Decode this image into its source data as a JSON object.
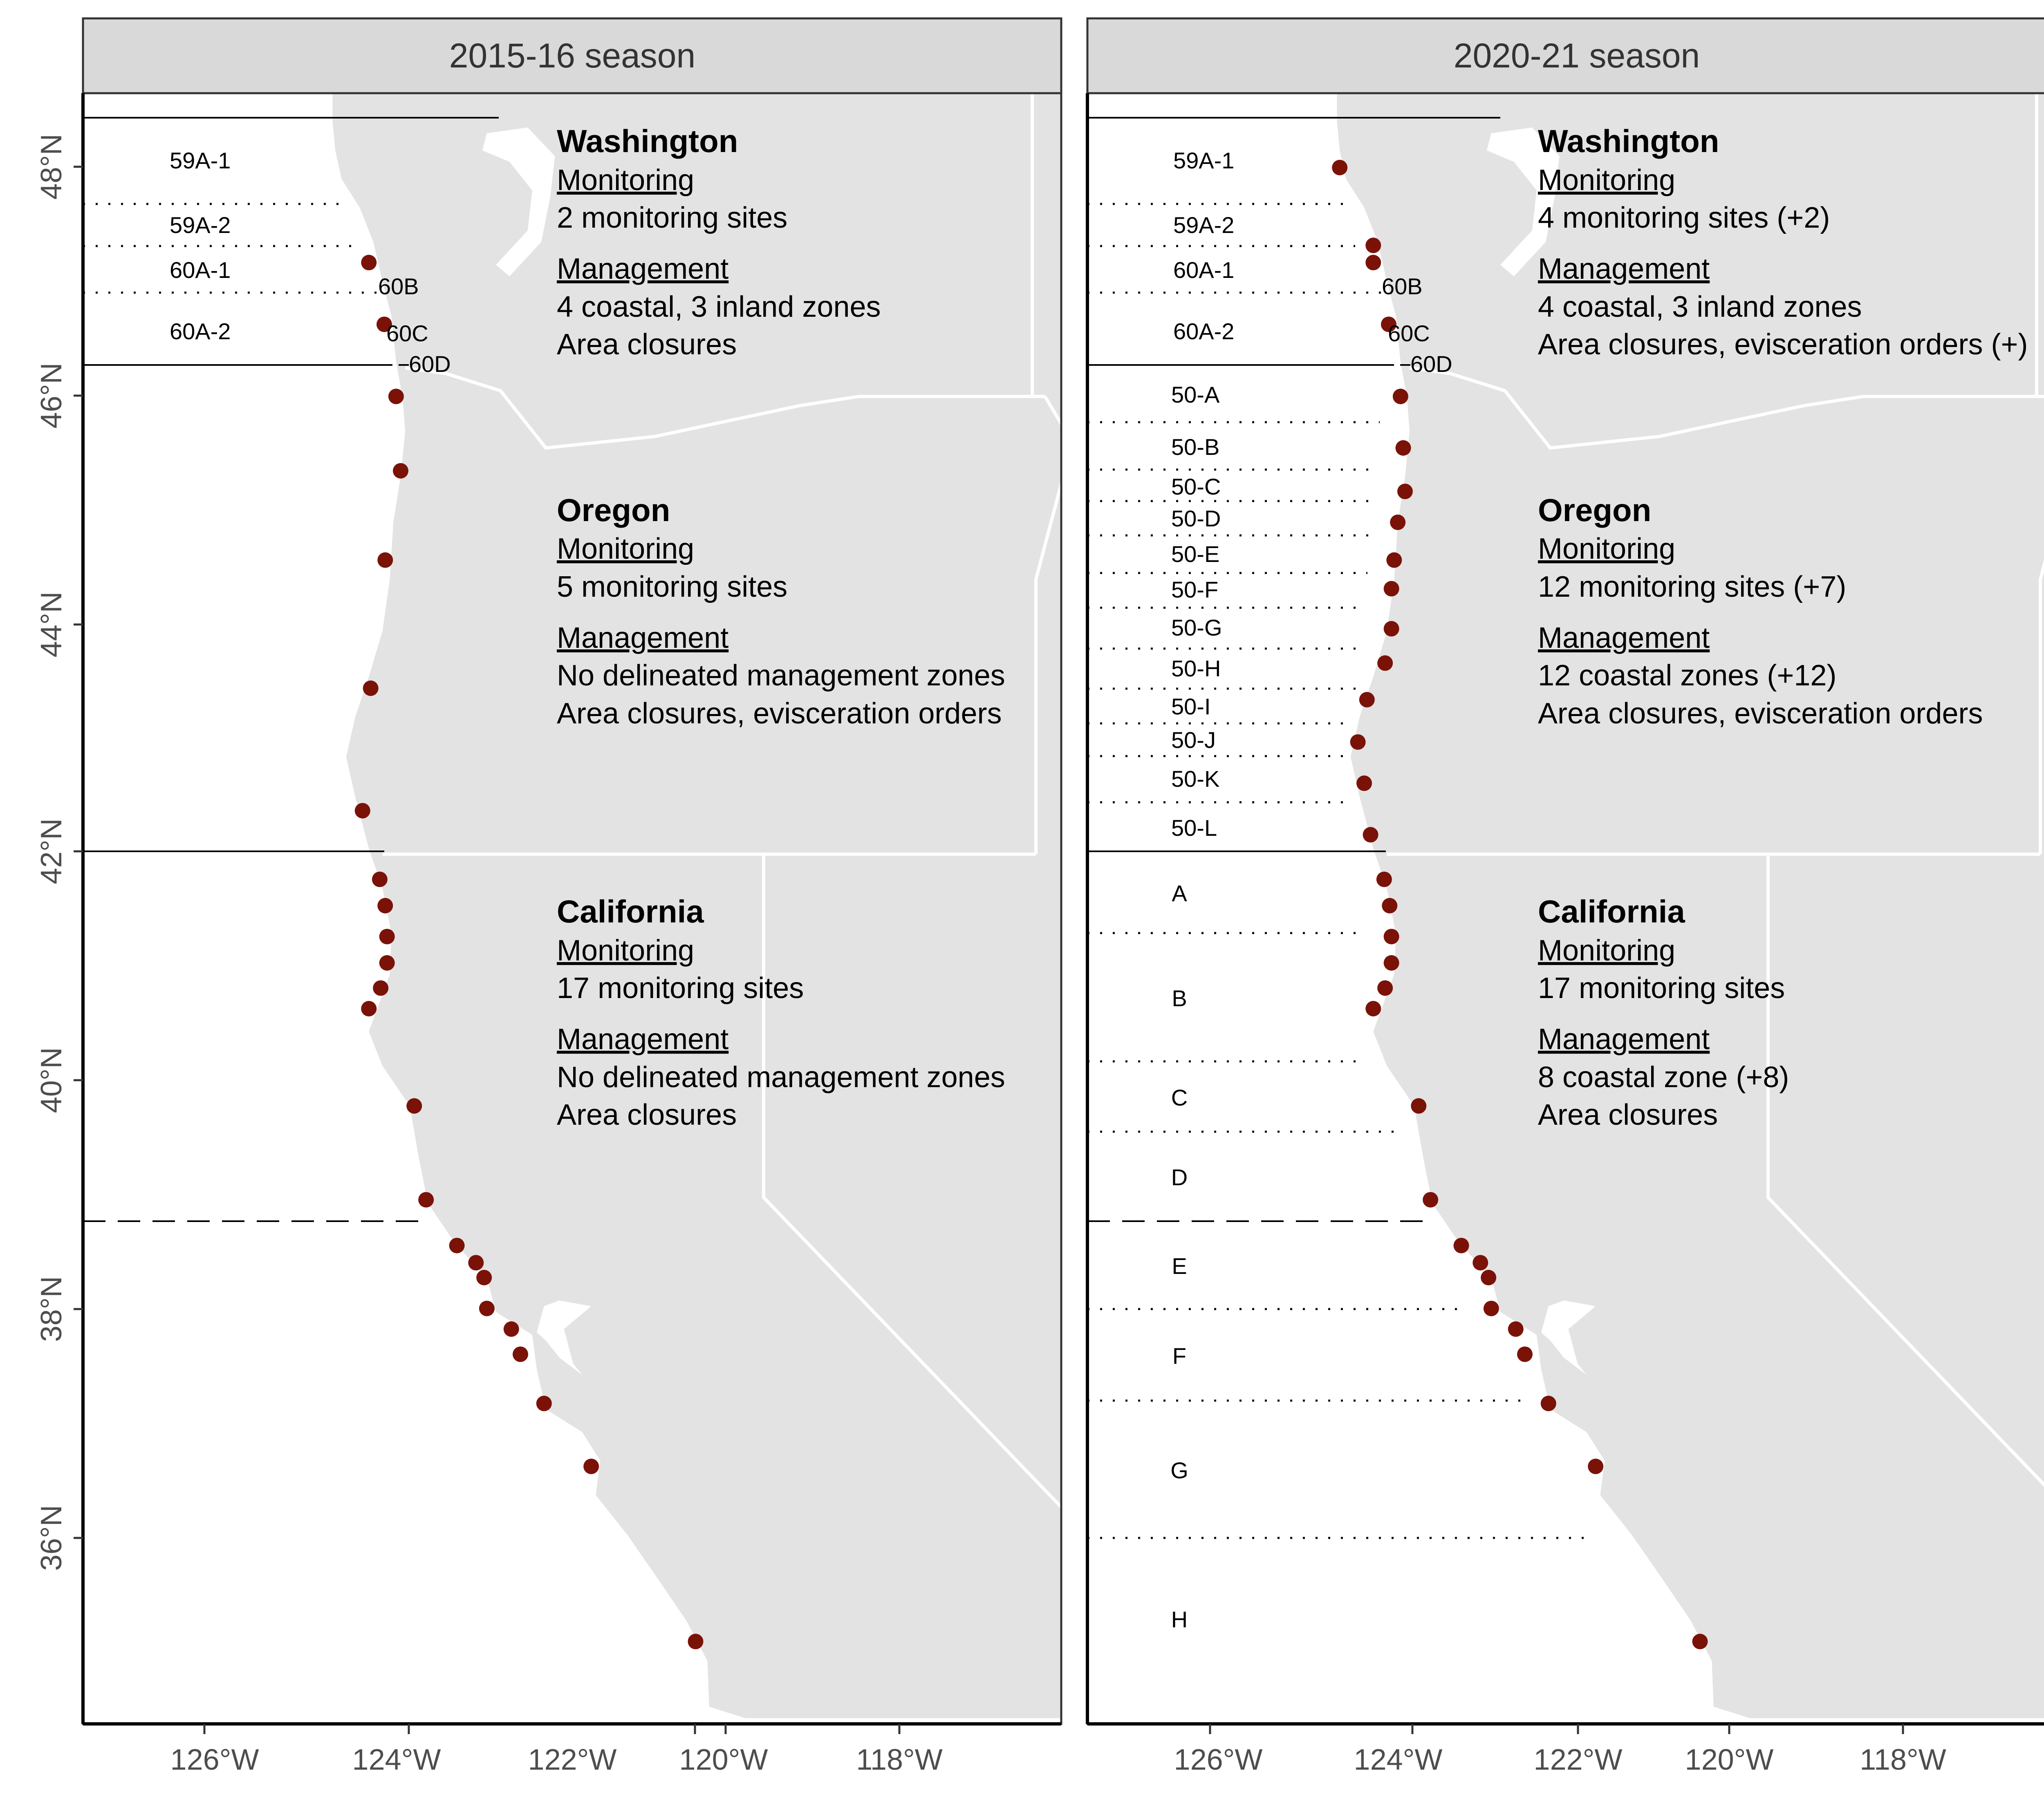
{
  "colors": {
    "land": "#e3e3e3",
    "strip": "#d9d9d9",
    "site": "#7a1208",
    "border": "#ffffff"
  },
  "axes": {
    "y_ticks": [
      "48°N",
      "46°N",
      "44°N",
      "42°N",
      "40°N",
      "38°N",
      "36°N"
    ],
    "x_ticks": [
      "126°W",
      "124°W",
      "122°W",
      "120°W",
      "118°W"
    ]
  },
  "panels": [
    {
      "title": "2015-16 season",
      "zones": [
        {
          "label": "59A-1"
        },
        {
          "label": "59A-2"
        },
        {
          "label": "60A-1"
        },
        {
          "label": "60B"
        },
        {
          "label": "60A-2"
        },
        {
          "label": "60C"
        },
        {
          "label": "60D"
        }
      ],
      "states": [
        {
          "name": "Washington",
          "monitoring_label": "Monitoring",
          "monitoring": "2 monitoring sites",
          "management_label": "Management",
          "management": [
            "4 coastal, 3 inland zones",
            "Area closures"
          ]
        },
        {
          "name": "Oregon",
          "monitoring_label": "Monitoring",
          "monitoring": "5 monitoring sites",
          "management_label": "Management",
          "management": [
            "No delineated management zones",
            "Area closures, evisceration orders"
          ]
        },
        {
          "name": "California",
          "monitoring_label": "Monitoring",
          "monitoring": "17 monitoring sites",
          "management_label": "Management",
          "management": [
            "No delineated management zones",
            "Area closures"
          ]
        }
      ],
      "sites": [
        [
          -124.35,
          47.17
        ],
        [
          -124.18,
          46.63
        ],
        [
          -124.05,
          46.0
        ],
        [
          -124.0,
          45.35
        ],
        [
          -124.17,
          44.57
        ],
        [
          -124.33,
          43.45
        ],
        [
          -124.42,
          42.38
        ],
        [
          -124.23,
          41.78
        ],
        [
          -124.17,
          41.55
        ],
        [
          -124.15,
          41.28
        ],
        [
          -124.15,
          41.05
        ],
        [
          -124.22,
          40.83
        ],
        [
          -124.35,
          40.65
        ],
        [
          -123.85,
          39.8
        ],
        [
          -123.72,
          38.98
        ],
        [
          -123.38,
          38.58
        ],
        [
          -123.17,
          38.43
        ],
        [
          -123.08,
          38.3
        ],
        [
          -123.05,
          38.03
        ],
        [
          -122.78,
          37.85
        ],
        [
          -122.68,
          37.63
        ],
        [
          -122.42,
          37.2
        ],
        [
          -121.9,
          36.65
        ],
        [
          -120.75,
          35.12
        ]
      ]
    },
    {
      "title": "2020-21 season",
      "zones": [
        {
          "label": "59A-1"
        },
        {
          "label": "59A-2"
        },
        {
          "label": "60A-1"
        },
        {
          "label": "60B"
        },
        {
          "label": "60A-2"
        },
        {
          "label": "60C"
        },
        {
          "label": "60D"
        },
        {
          "label": "50-A"
        },
        {
          "label": "50-B"
        },
        {
          "label": "50-C"
        },
        {
          "label": "50-D"
        },
        {
          "label": "50-E"
        },
        {
          "label": "50-F"
        },
        {
          "label": "50-G"
        },
        {
          "label": "50-H"
        },
        {
          "label": "50-I"
        },
        {
          "label": "50-J"
        },
        {
          "label": "50-K"
        },
        {
          "label": "50-L"
        },
        {
          "label": "A"
        },
        {
          "label": "B"
        },
        {
          "label": "C"
        },
        {
          "label": "D"
        },
        {
          "label": "E"
        },
        {
          "label": "F"
        },
        {
          "label": "G"
        },
        {
          "label": "H"
        }
      ],
      "states": [
        {
          "name": "Washington",
          "monitoring_label": "Monitoring",
          "monitoring": "4 monitoring sites (+2)",
          "management_label": "Management",
          "management": [
            "4 coastal, 3 inland zones",
            "Area closures, evisceration orders (+)"
          ]
        },
        {
          "name": "Oregon",
          "monitoring_label": "Monitoring",
          "monitoring": "12 monitoring sites (+7)",
          "management_label": "Management",
          "management": [
            "12 coastal zones (+12)",
            "Area closures, evisceration orders"
          ]
        },
        {
          "name": "California",
          "monitoring_label": "Monitoring",
          "monitoring": "17 monitoring sites",
          "management_label": "Management",
          "management": [
            "8 coastal zone (+8)",
            "Area closures"
          ]
        }
      ],
      "sites": [
        [
          -124.72,
          48.0
        ],
        [
          -124.35,
          47.32
        ],
        [
          -124.35,
          47.17
        ],
        [
          -124.18,
          46.63
        ],
        [
          -124.05,
          46.0
        ],
        [
          -124.02,
          45.55
        ],
        [
          -124.0,
          45.17
        ],
        [
          -124.08,
          44.9
        ],
        [
          -124.12,
          44.57
        ],
        [
          -124.15,
          44.32
        ],
        [
          -124.15,
          43.97
        ],
        [
          -124.22,
          43.67
        ],
        [
          -124.42,
          43.35
        ],
        [
          -124.52,
          42.98
        ],
        [
          -124.45,
          42.62
        ],
        [
          -124.38,
          42.17
        ],
        [
          -124.23,
          41.78
        ],
        [
          -124.17,
          41.55
        ],
        [
          -124.15,
          41.28
        ],
        [
          -124.15,
          41.05
        ],
        [
          -124.22,
          40.83
        ],
        [
          -124.35,
          40.65
        ],
        [
          -123.85,
          39.8
        ],
        [
          -123.72,
          38.98
        ],
        [
          -123.38,
          38.58
        ],
        [
          -123.17,
          38.43
        ],
        [
          -123.08,
          38.3
        ],
        [
          -123.05,
          38.03
        ],
        [
          -122.78,
          37.85
        ],
        [
          -122.68,
          37.63
        ],
        [
          -122.42,
          37.2
        ],
        [
          -121.9,
          36.65
        ],
        [
          -120.75,
          35.12
        ]
      ]
    }
  ]
}
